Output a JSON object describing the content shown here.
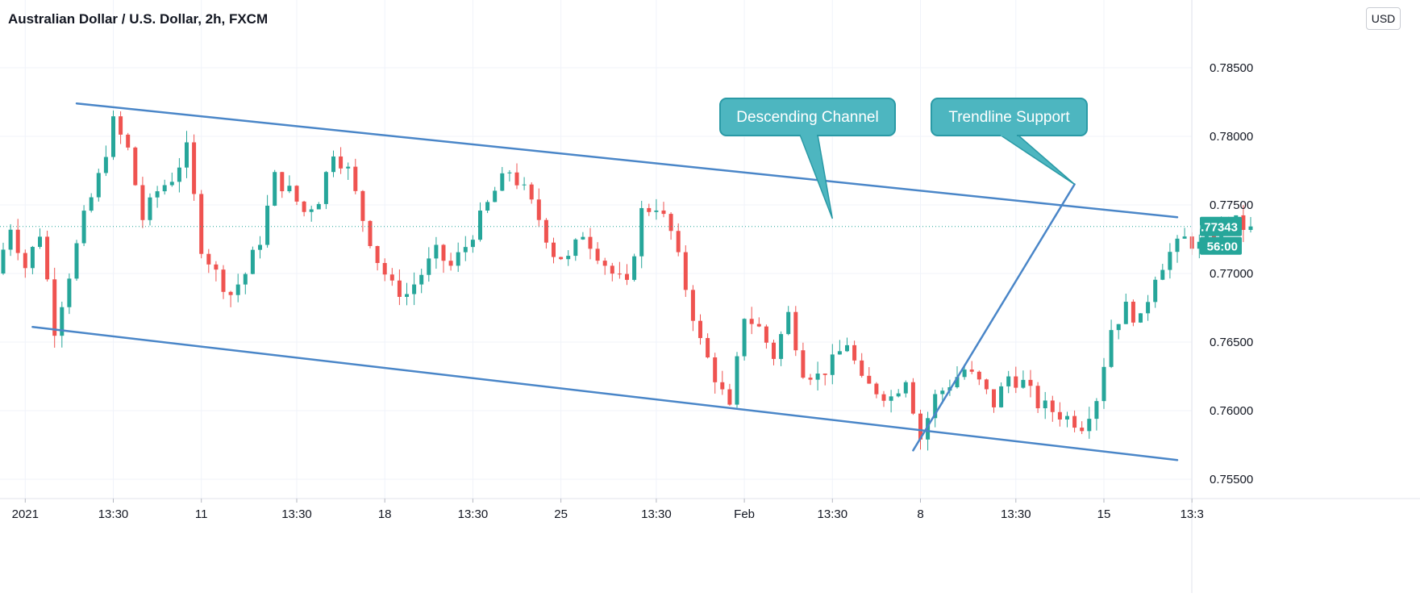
{
  "header": {
    "title": "Australian Dollar / U.S. Dollar, 2h, FXCM",
    "currency_label": "USD"
  },
  "colors": {
    "up": "#26a69a",
    "down": "#ef5350",
    "drawing": "#4a86c8",
    "callout_fill": "#4db6c0",
    "callout_border": "#2a9aa6",
    "grid": "#f0f3fa",
    "axis_text": "#131722",
    "price_tag": "#26a69a"
  },
  "chart_data": {
    "type": "candlestick",
    "symbol": "AUDUSD",
    "timeframe": "2h",
    "x_axis": {
      "ticks": [
        {
          "label": "2021",
          "bar": 3
        },
        {
          "label": "13:30",
          "bar": 15
        },
        {
          "label": "11",
          "bar": 27
        },
        {
          "label": "13:30",
          "bar": 40
        },
        {
          "label": "18",
          "bar": 52
        },
        {
          "label": "13:30",
          "bar": 64
        },
        {
          "label": "25",
          "bar": 76
        },
        {
          "label": "13:30",
          "bar": 89
        },
        {
          "label": "Feb",
          "bar": 101
        },
        {
          "label": "13:30",
          "bar": 113
        },
        {
          "label": "8",
          "bar": 125
        },
        {
          "label": "13:30",
          "bar": 138
        },
        {
          "label": "15",
          "bar": 150
        },
        {
          "label": "13:3",
          "bar": 162
        }
      ],
      "bar_range": [
        0,
        170
      ]
    },
    "y_axis": {
      "ticks": [
        "0.78500",
        "0.78000",
        "0.77500",
        "0.77000",
        "0.76500",
        "0.76000",
        "0.75500"
      ],
      "range": [
        0.7532,
        0.7877
      ]
    },
    "last_price": {
      "value": 0.77343,
      "label": "0.77343",
      "countdown": "56:00"
    },
    "price_points": [
      {
        "bar": 0,
        "price": 0.77
      },
      {
        "bar": 2,
        "price": 0.7735
      },
      {
        "bar": 4,
        "price": 0.7705
      },
      {
        "bar": 6,
        "price": 0.773
      },
      {
        "bar": 8,
        "price": 0.766
      },
      {
        "bar": 10,
        "price": 0.77
      },
      {
        "bar": 12,
        "price": 0.774
      },
      {
        "bar": 14,
        "price": 0.777
      },
      {
        "bar": 16,
        "price": 0.781
      },
      {
        "bar": 18,
        "price": 0.779
      },
      {
        "bar": 20,
        "price": 0.774
      },
      {
        "bar": 22,
        "price": 0.776
      },
      {
        "bar": 24,
        "price": 0.777
      },
      {
        "bar": 26,
        "price": 0.779
      },
      {
        "bar": 28,
        "price": 0.772
      },
      {
        "bar": 30,
        "price": 0.77
      },
      {
        "bar": 32,
        "price": 0.7685
      },
      {
        "bar": 34,
        "price": 0.77
      },
      {
        "bar": 36,
        "price": 0.7725
      },
      {
        "bar": 38,
        "price": 0.777
      },
      {
        "bar": 40,
        "price": 0.776
      },
      {
        "bar": 42,
        "price": 0.7745
      },
      {
        "bar": 44,
        "price": 0.7755
      },
      {
        "bar": 46,
        "price": 0.779
      },
      {
        "bar": 48,
        "price": 0.7775
      },
      {
        "bar": 50,
        "price": 0.774
      },
      {
        "bar": 52,
        "price": 0.771
      },
      {
        "bar": 54,
        "price": 0.769
      },
      {
        "bar": 56,
        "price": 0.7685
      },
      {
        "bar": 58,
        "price": 0.77
      },
      {
        "bar": 60,
        "price": 0.7715
      },
      {
        "bar": 62,
        "price": 0.7705
      },
      {
        "bar": 64,
        "price": 0.772
      },
      {
        "bar": 66,
        "price": 0.774
      },
      {
        "bar": 68,
        "price": 0.776
      },
      {
        "bar": 70,
        "price": 0.7775
      },
      {
        "bar": 72,
        "price": 0.776
      },
      {
        "bar": 74,
        "price": 0.774
      },
      {
        "bar": 76,
        "price": 0.7715
      },
      {
        "bar": 78,
        "price": 0.771
      },
      {
        "bar": 80,
        "price": 0.773
      },
      {
        "bar": 82,
        "price": 0.7715
      },
      {
        "bar": 84,
        "price": 0.77
      },
      {
        "bar": 86,
        "price": 0.769
      },
      {
        "bar": 88,
        "price": 0.7745
      },
      {
        "bar": 90,
        "price": 0.775
      },
      {
        "bar": 92,
        "price": 0.773
      },
      {
        "bar": 94,
        "price": 0.769
      },
      {
        "bar": 96,
        "price": 0.765
      },
      {
        "bar": 98,
        "price": 0.7625
      },
      {
        "bar": 100,
        "price": 0.76
      },
      {
        "bar": 102,
        "price": 0.767
      },
      {
        "bar": 104,
        "price": 0.766
      },
      {
        "bar": 106,
        "price": 0.764
      },
      {
        "bar": 108,
        "price": 0.767
      },
      {
        "bar": 110,
        "price": 0.763
      },
      {
        "bar": 112,
        "price": 0.7625
      },
      {
        "bar": 114,
        "price": 0.7635
      },
      {
        "bar": 116,
        "price": 0.765
      },
      {
        "bar": 118,
        "price": 0.762
      },
      {
        "bar": 120,
        "price": 0.7615
      },
      {
        "bar": 122,
        "price": 0.761
      },
      {
        "bar": 124,
        "price": 0.7625
      },
      {
        "bar": 126,
        "price": 0.758
      },
      {
        "bar": 128,
        "price": 0.761
      },
      {
        "bar": 130,
        "price": 0.762
      },
      {
        "bar": 132,
        "price": 0.763
      },
      {
        "bar": 134,
        "price": 0.762
      },
      {
        "bar": 136,
        "price": 0.7605
      },
      {
        "bar": 138,
        "price": 0.7625
      },
      {
        "bar": 140,
        "price": 0.762
      },
      {
        "bar": 142,
        "price": 0.7605
      },
      {
        "bar": 144,
        "price": 0.76
      },
      {
        "bar": 146,
        "price": 0.7595
      },
      {
        "bar": 148,
        "price": 0.759
      },
      {
        "bar": 150,
        "price": 0.761
      },
      {
        "bar": 152,
        "price": 0.766
      },
      {
        "bar": 154,
        "price": 0.7675
      },
      {
        "bar": 156,
        "price": 0.7665
      },
      {
        "bar": 158,
        "price": 0.77
      },
      {
        "bar": 160,
        "price": 0.7715
      },
      {
        "bar": 162,
        "price": 0.7725
      },
      {
        "bar": 164,
        "price": 0.772
      },
      {
        "bar": 166,
        "price": 0.773
      },
      {
        "bar": 168,
        "price": 0.774
      },
      {
        "bar": 170,
        "price": 0.7734
      }
    ],
    "drawings": {
      "trendlines": [
        {
          "name": "channel-upper",
          "from": {
            "bar": 10,
            "price": 0.7824
          },
          "to": {
            "bar": 160,
            "price": 0.7741
          }
        },
        {
          "name": "channel-lower",
          "from": {
            "bar": 4,
            "price": 0.7661
          },
          "to": {
            "bar": 160,
            "price": 0.7564
          }
        },
        {
          "name": "support-line",
          "from": {
            "bar": 124,
            "price": 0.7571
          },
          "to": {
            "bar": 146,
            "price": 0.7765
          }
        }
      ],
      "callouts": [
        {
          "text": "Descending Channel",
          "anchor_bar": 113,
          "anchor_price": 0.774
        },
        {
          "text": "Trendline Support",
          "anchor_bar": 146,
          "anchor_price": 0.7765
        }
      ]
    }
  }
}
